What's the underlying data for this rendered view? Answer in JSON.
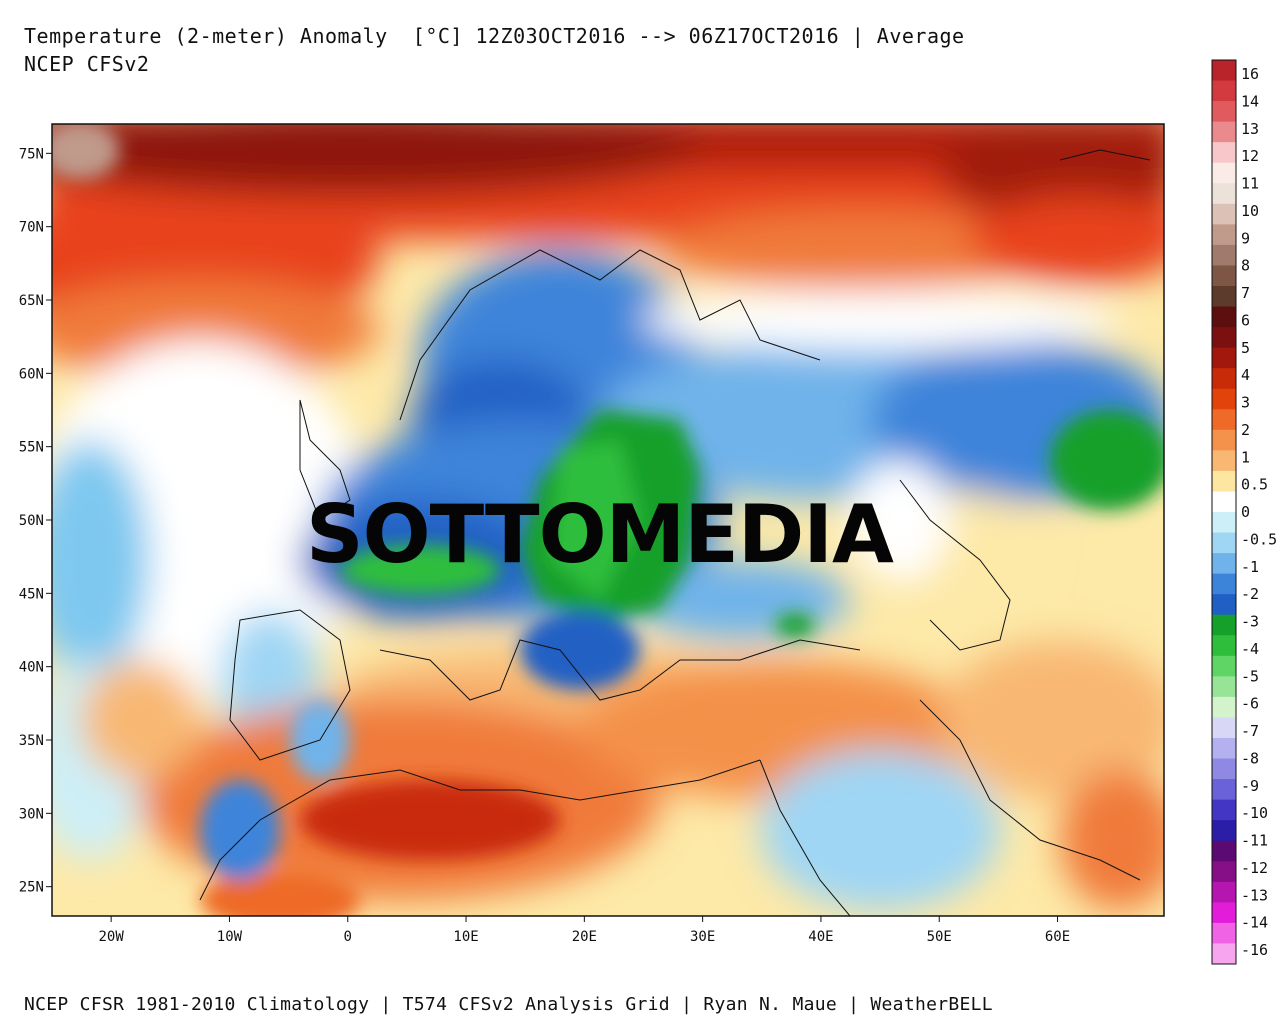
{
  "header": {
    "title": "Temperature (2-meter) Anomaly  [°C] 12Z03OCT2016 --> 06Z17OCT2016 | Average",
    "subtitle": "NCEP CFSv2"
  },
  "overlay": {
    "text": "SOTTOMEDIA"
  },
  "footer": {
    "credit": "NCEP CFSR 1981-2010 Climatology | T574 CFSv2 Analysis Grid | Ryan N. Maue | WeatherBELL"
  },
  "map": {
    "lat_ticks": [
      "75N",
      "70N",
      "65N",
      "60N",
      "55N",
      "50N",
      "45N",
      "40N",
      "35N",
      "30N",
      "25N"
    ],
    "lon_ticks": [
      "20W",
      "10W",
      "0",
      "10E",
      "20E",
      "30E",
      "40E",
      "50E",
      "60E"
    ],
    "lon_range": [
      -25,
      69
    ],
    "lat_range": [
      23,
      77
    ],
    "regions": [
      {
        "name": "arctic-warm",
        "lon": 0,
        "lat": 71,
        "anomaly": 5
      },
      {
        "name": "scandinavia-cold",
        "lon": 17,
        "lat": 61,
        "anomaly": -2
      },
      {
        "name": "central-europe-cold",
        "lon": 20,
        "lat": 50,
        "anomaly": -4
      },
      {
        "name": "russia-cold",
        "lon": 45,
        "lat": 57,
        "anomaly": -2
      },
      {
        "name": "urals-green",
        "lon": 66,
        "lat": 52,
        "anomaly": -4
      },
      {
        "name": "sahara-warm",
        "lon": 10,
        "lat": 31,
        "anomaly": 4
      },
      {
        "name": "atlantic-neutral",
        "lon": -15,
        "lat": 46,
        "anomaly": 0
      },
      {
        "name": "siberia-north-warm",
        "lon": 55,
        "lat": 72,
        "anomaly": 4
      },
      {
        "name": "middle-east-warm",
        "lon": 45,
        "lat": 33,
        "anomaly": 1
      }
    ]
  },
  "legend": {
    "colors": [
      "#b8242a",
      "#d33a3f",
      "#e15a5d",
      "#ea8a8c",
      "#f7c7c9",
      "#faebe7",
      "#ece2da",
      "#dcc2b6",
      "#c09a8b",
      "#a07a6c",
      "#7d5645",
      "#5c3a2c",
      "#5d0e0e",
      "#7c0f0f",
      "#a3180d",
      "#c92a08",
      "#e2430a",
      "#ee6a26",
      "#f4914a",
      "#f8b873",
      "#fce6a0",
      "#ffffff",
      "#cdeff7",
      "#9fd6f4",
      "#6fb3ea",
      "#3c84da",
      "#2060c4",
      "#14a02a",
      "#2fbe3c",
      "#5ed565",
      "#98e497",
      "#d2f3cc",
      "#d8d8f6",
      "#b3b1ef",
      "#8f89e4",
      "#6a62d8",
      "#4436c4",
      "#2a1da8",
      "#5a0a70",
      "#860e86",
      "#b616b0",
      "#e21cd8",
      "#ef63e4",
      "#f7a5ef"
    ],
    "labels": [
      "16",
      "14",
      "13",
      "12",
      "11",
      "10",
      "9",
      "8",
      "7",
      "6",
      "5",
      "4",
      "3",
      "2",
      "1",
      "0.5",
      "0",
      "-0.5",
      "-1",
      "-2",
      "-3",
      "-4",
      "-5",
      "-6",
      "-7",
      "-8",
      "-9",
      "-10",
      "-11",
      "-12",
      "-13",
      "-14",
      "-16"
    ]
  }
}
